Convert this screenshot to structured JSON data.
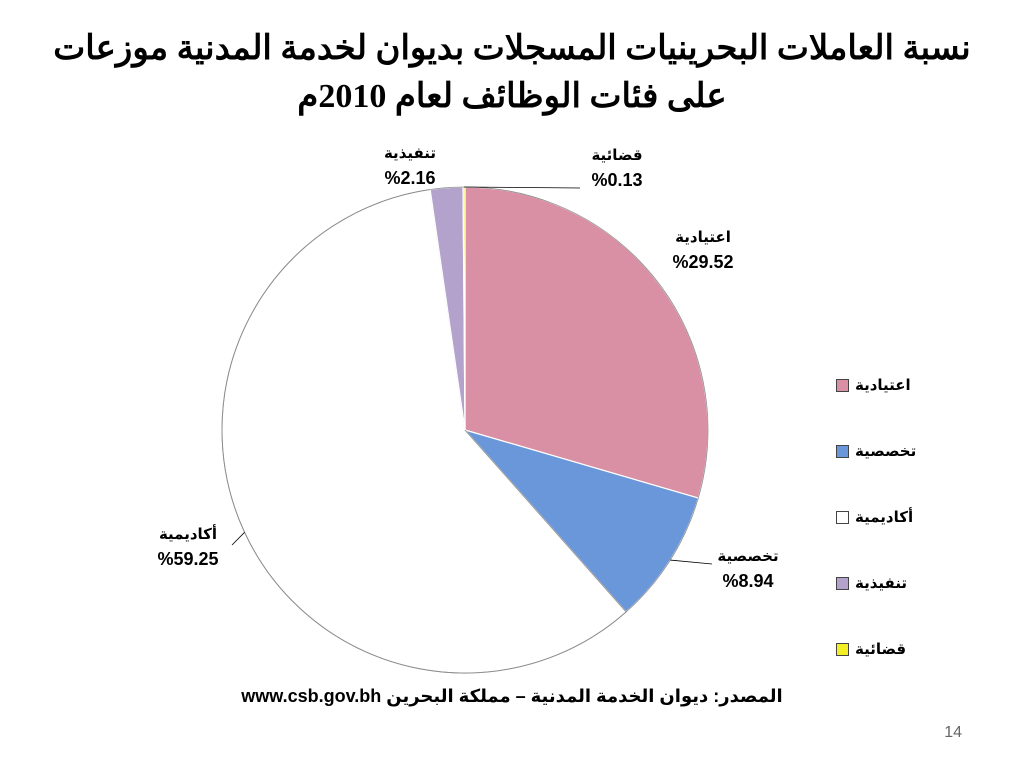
{
  "slide": {
    "title_line1": "نسبة العاملات البحرينيات المسجلات بديوان لخدمة المدنية موزعات",
    "title_line2": "على فئات الوظائف لعام 2010م",
    "source_line": "المصدر: ديوان الخدمة المدنية – مملكة البحرين www.csb.gov.bh",
    "page_number": "14"
  },
  "chart_data": {
    "type": "pie",
    "title": "نسبة العاملات البحرينيات المسجلات بديوان لخدمة المدنية موزعات على فئات الوظائف لعام 2010م",
    "legend_position": "right",
    "categories": [
      "اعتيادية",
      "تخصصية",
      "أكاديمية",
      "تنفيذية",
      "قضائية"
    ],
    "values": [
      29.52,
      8.94,
      59.25,
      2.16,
      0.13
    ],
    "value_labels": [
      "%29.52",
      "%8.94",
      "%59.25",
      "%2.16",
      "%0.13"
    ],
    "colors": [
      "#D98FA4",
      "#6A96DA",
      "#FFFFFF",
      "#B3A2CC",
      "#F4EE24"
    ],
    "start_angle_deg": 0,
    "direction": "clockwise"
  }
}
